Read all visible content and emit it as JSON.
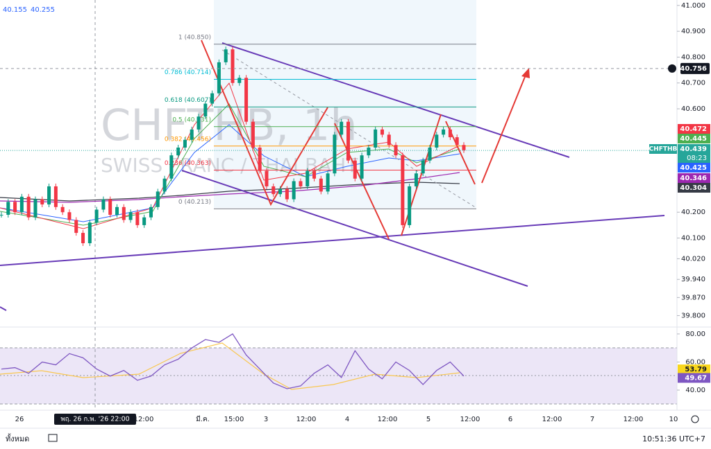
{
  "header": {
    "ohlc": [
      40.155,
      40.255
    ]
  },
  "price_chart": {
    "symbol": "CHFTHB, 1h",
    "description": "SWISS FRANC / THAI BAHT",
    "ylim": [
      39.761,
      41.021
    ],
    "yticks": [
      {
        "value": 41,
        "label": "41.000"
      },
      {
        "value": 40.9,
        "label": "40.900"
      },
      {
        "value": 40.8,
        "label": "40.800"
      },
      {
        "value": 40.7,
        "label": "40.700"
      },
      {
        "value": 40.6,
        "label": "40.600"
      },
      {
        "value": 40.2,
        "label": "40.200"
      },
      {
        "value": 40.1,
        "label": "40.100"
      },
      {
        "value": 40.02,
        "label": "40.020"
      },
      {
        "value": 39.94,
        "label": "39.940"
      },
      {
        "value": 39.87,
        "label": "39.870"
      },
      {
        "value": 39.8,
        "label": "39.800"
      }
    ],
    "closes": [
      40.19,
      40.24,
      40.2,
      40.26,
      40.18,
      40.25,
      40.23,
      40.3,
      40.22,
      40.2,
      40.17,
      40.12,
      40.08,
      40.16,
      40.21,
      40.25,
      40.19,
      40.22,
      40.17,
      40.2,
      40.15,
      40.18,
      40.22,
      40.28,
      40.33,
      40.42,
      40.45,
      40.48,
      40.52,
      40.57,
      40.62,
      40.66,
      40.78,
      40.83,
      40.7,
      40.72,
      40.55,
      40.45,
      40.36,
      40.3,
      40.27,
      40.29,
      40.25,
      40.32,
      40.3,
      40.36,
      40.33,
      40.28,
      40.35,
      40.5,
      40.55,
      40.4,
      40.33,
      40.42,
      40.45,
      40.52,
      40.5,
      40.46,
      40.42,
      40.15,
      40.3,
      40.35,
      40.4,
      40.45,
      40.5,
      40.52,
      40.49,
      40.46,
      40.44
    ],
    "up_color": "#089981",
    "down_color": "#f23645",
    "fib": [
      {
        "label": "1 (40.850)",
        "price": 40.85,
        "color": "#787b86"
      },
      {
        "label": "0.786 (40.714)",
        "price": 40.714,
        "color": "#00bcd4"
      },
      {
        "label": "0.618 (40.607)",
        "price": 40.607,
        "color": "#089981"
      },
      {
        "label": "0.5 (40.531)",
        "price": 40.531,
        "color": "#4caf50"
      },
      {
        "label": "0.382 (40.456)",
        "price": 40.456,
        "color": "#ff9800"
      },
      {
        "label": "0.236 (40.363)",
        "price": 40.363,
        "color": "#f23645"
      },
      {
        "label": "0 (40.213)",
        "price": 40.213,
        "color": "#787b86"
      }
    ],
    "crosshair_price": 40.756,
    "badges": [
      {
        "value": 40.472,
        "color": "#f23645"
      },
      {
        "value": 40.445,
        "color": "#4caf50"
      },
      {
        "value": 40.439,
        "color": "#26a69a",
        "symbol": "CHFTHB",
        "countdown": "08:23"
      },
      {
        "value": 40.425,
        "color": "#2962ff"
      },
      {
        "value": 40.346,
        "color": "#9c27b0"
      },
      {
        "value": 40.304,
        "color": "#363a45"
      }
    ]
  },
  "rsi": {
    "ylim": [
      25.7,
      84.9
    ],
    "yticks": [
      {
        "value": 80,
        "label": "80.00"
      },
      {
        "value": 60,
        "label": "60.00"
      },
      {
        "value": 40,
        "label": "40.00"
      }
    ],
    "values": [
      55,
      56,
      52,
      60,
      58,
      66,
      63,
      55,
      50,
      54,
      47,
      50,
      58,
      62,
      70,
      76,
      74,
      80,
      65,
      55,
      45,
      41,
      43,
      52,
      58,
      49,
      68,
      55,
      48,
      60,
      54,
      44,
      54,
      60,
      50
    ],
    "color": "#7e57c2",
    "badges": [
      {
        "value": 53.79,
        "color": "#f9d71c"
      },
      {
        "value": 49.67,
        "color": "#7e57c2"
      }
    ]
  },
  "time_axis": {
    "labels": [
      "26",
      "12:00",
      "มี.ค.",
      "15:00",
      "3",
      "12:00",
      "4",
      "12:00",
      "5",
      "12:00",
      "6",
      "12:00",
      "7",
      "12:00",
      "10"
    ],
    "crosshair_label": "พฤ. 26 ก.พ. '26   22:00"
  },
  "footer": {
    "range": "ทั้งหมด",
    "clock": "10:51:36 UTC+7"
  }
}
